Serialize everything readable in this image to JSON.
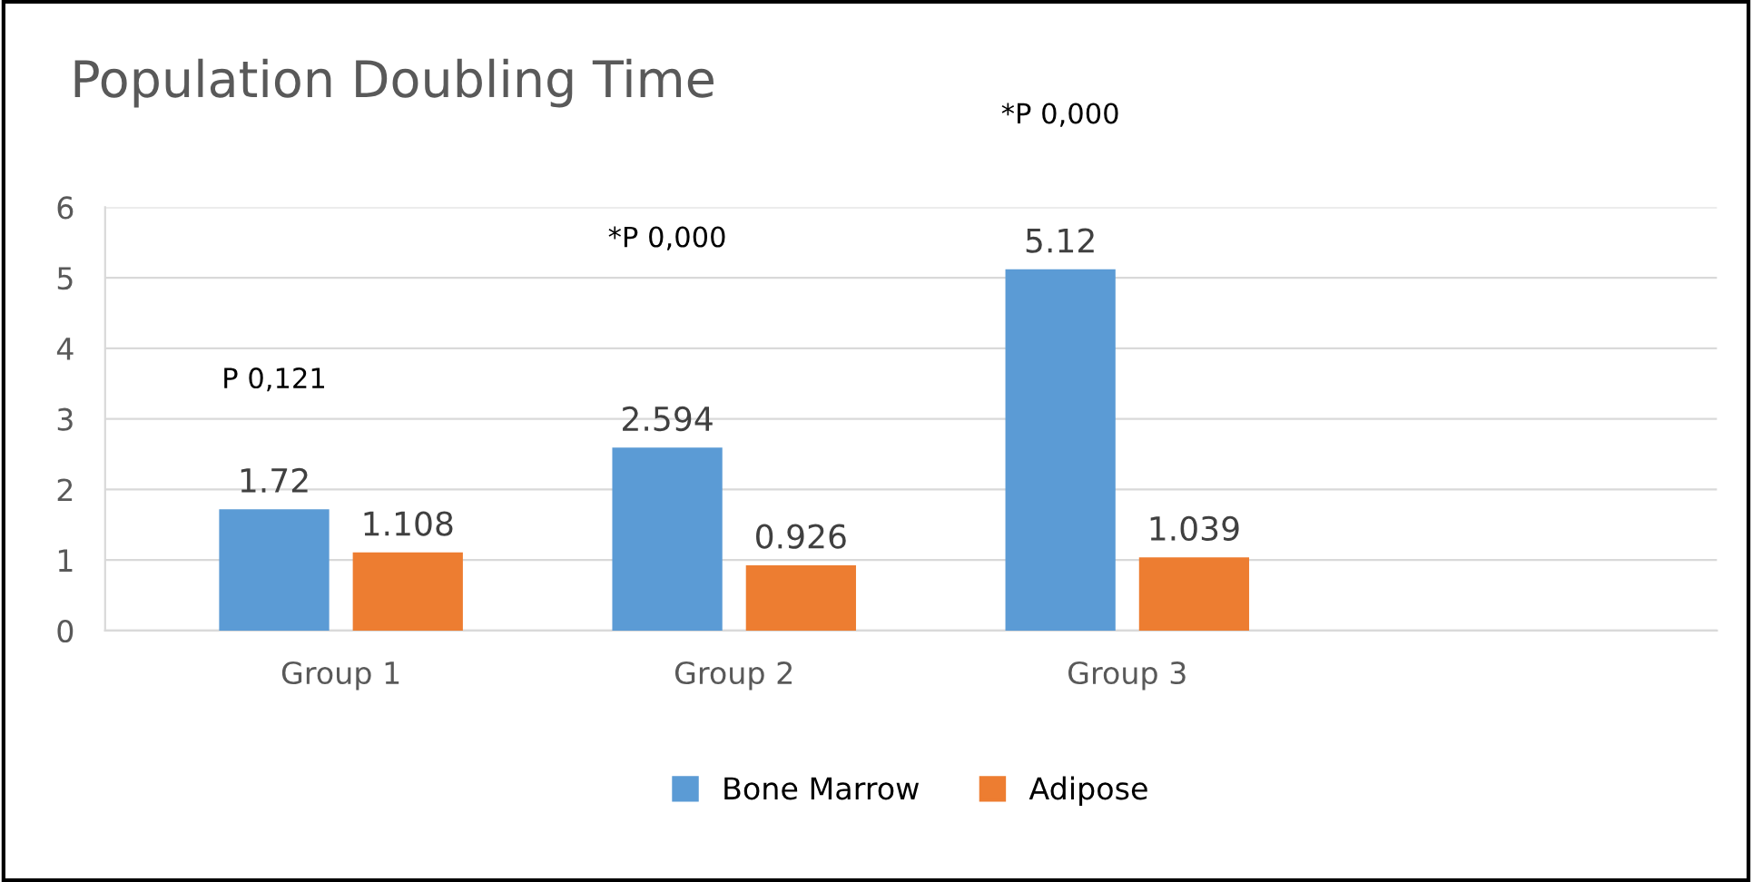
{
  "chart_data": {
    "type": "bar",
    "title": "Population Doubling Time",
    "categories": [
      "Group 1",
      "Group 2",
      "Group 3"
    ],
    "series": [
      {
        "name": "Bone Marrow",
        "color": "#5b9bd5",
        "values": [
          1.72,
          2.594,
          5.12
        ]
      },
      {
        "name": "Adipose",
        "color": "#ed7d31",
        "values": [
          1.108,
          0.926,
          1.039
        ]
      }
    ],
    "ylim": [
      0,
      6
    ],
    "yticks": [
      0,
      1,
      2,
      3,
      4,
      5,
      6
    ],
    "grid": "y",
    "legend": "bottom",
    "data_labels": true,
    "annotations": [
      "P 0,121",
      "*P 0,000",
      "*P 0,000"
    ]
  }
}
